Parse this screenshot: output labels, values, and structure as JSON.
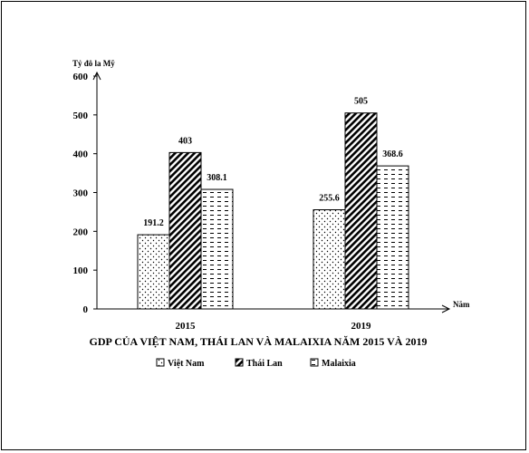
{
  "chart_data": {
    "type": "bar",
    "title": "GDP CỦA  VIỆT NAM, THÁI LAN VÀ MALAIXIA  NĂM 2015 VÀ 2019",
    "ylabel": "Tỷ đô la Mỹ",
    "xlabel": "Năm",
    "ylim": [
      0,
      600
    ],
    "yticks": [
      0,
      100,
      200,
      300,
      400,
      500,
      600
    ],
    "categories": [
      "2015",
      "2019"
    ],
    "legend_position": "bottom",
    "series": [
      {
        "name": "Việt Nam",
        "pattern": "dots",
        "values": [
          191.2,
          255.6
        ],
        "labels": [
          "191.2",
          "255.6"
        ]
      },
      {
        "name": "Thái Lan",
        "pattern": "diagonal",
        "values": [
          403,
          505
        ],
        "labels": [
          "403",
          "505"
        ]
      },
      {
        "name": "Malaixia",
        "pattern": "horizontal",
        "values": [
          308.1,
          368.6
        ],
        "labels": [
          "308.1",
          "368.6"
        ]
      }
    ]
  }
}
